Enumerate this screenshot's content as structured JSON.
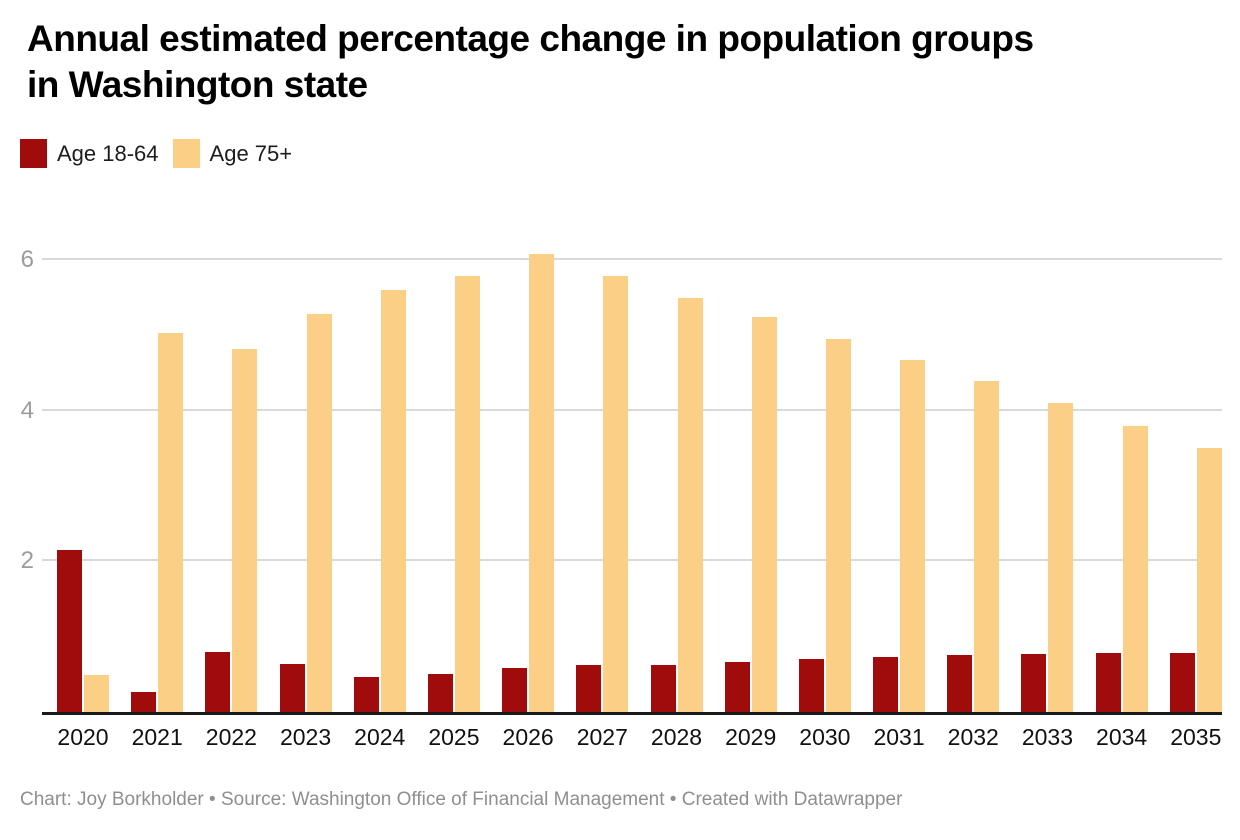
{
  "header": {
    "title_line1": "Annual estimated percentage change in population groups",
    "title_line2": "in Washington state"
  },
  "legend": {
    "items": [
      {
        "label": "Age 18-64",
        "color": "#a00c0c"
      },
      {
        "label": "Age 75+",
        "color": "#fbcf85"
      }
    ]
  },
  "footer": {
    "credit": "Chart: Joy Borkholder • Source: Washington Office of Financial Management • Created with Datawrapper"
  },
  "chart_data": {
    "type": "bar",
    "title": "Annual estimated percentage change in population groups in Washington state",
    "categories": [
      "2020",
      "2021",
      "2022",
      "2023",
      "2024",
      "2025",
      "2026",
      "2027",
      "2028",
      "2029",
      "2030",
      "2031",
      "2032",
      "2033",
      "2034",
      "2035"
    ],
    "series": [
      {
        "name": "Age 18-64",
        "color": "#a00c0c",
        "values": [
          2.15,
          0.26,
          0.8,
          0.64,
          0.46,
          0.51,
          0.58,
          0.62,
          0.63,
          0.66,
          0.7,
          0.73,
          0.76,
          0.77,
          0.78,
          0.78
        ]
      },
      {
        "name": "Age 75+",
        "color": "#fbcf85",
        "values": [
          0.49,
          5.04,
          4.82,
          5.28,
          5.61,
          5.79,
          6.08,
          5.79,
          5.5,
          5.24,
          4.96,
          4.68,
          4.4,
          4.11,
          3.8,
          3.5
        ]
      }
    ],
    "xlabel": "",
    "ylabel": "",
    "yticks": [
      2,
      4,
      6
    ],
    "ylim": [
      0,
      6.8
    ],
    "grid": true,
    "legend_position": "top-left",
    "unit": "percent"
  }
}
